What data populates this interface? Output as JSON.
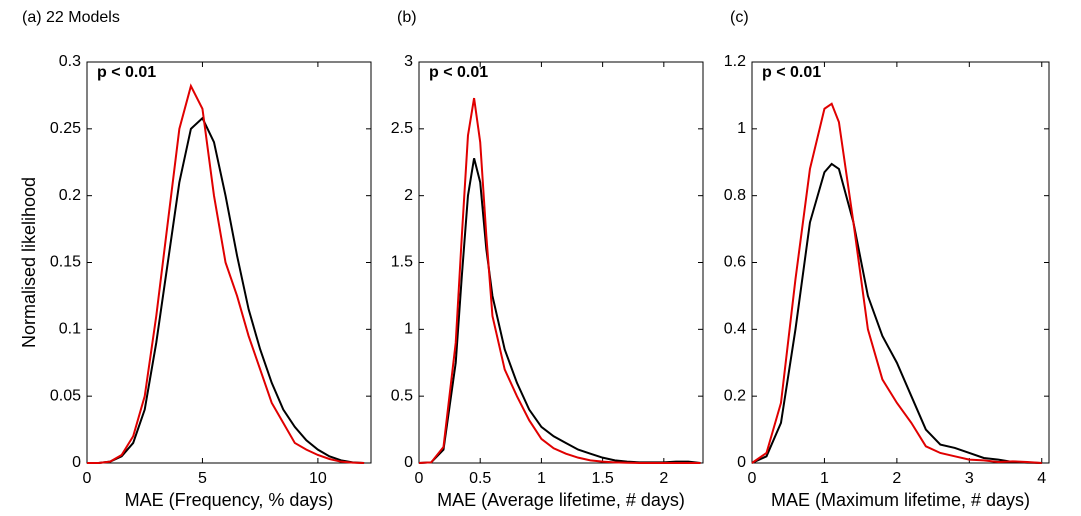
{
  "chart_data": [
    {
      "type": "line",
      "title": "(a) 22 Models",
      "annotation": "p < 0.01",
      "x_label": "MAE (Frequency, % days)",
      "y_label": "Normalised likelihood",
      "xlim": [
        0,
        12.3
      ],
      "ylim": [
        0,
        0.3
      ],
      "xticks": [
        0,
        5,
        10
      ],
      "yticks": [
        0,
        0.05,
        0.1,
        0.15,
        0.2,
        0.25,
        0.3
      ],
      "x": [
        0,
        0.5,
        1,
        1.5,
        2,
        2.5,
        3,
        3.5,
        4,
        4.5,
        5,
        5.5,
        6,
        6.5,
        7,
        7.5,
        8,
        8.5,
        9,
        9.5,
        10,
        10.5,
        11,
        11.5,
        12
      ],
      "series": [
        {
          "color": "#000000",
          "values": [
            0,
            0,
            0.001,
            0.005,
            0.015,
            0.04,
            0.09,
            0.15,
            0.21,
            0.25,
            0.258,
            0.24,
            0.2,
            0.155,
            0.115,
            0.085,
            0.06,
            0.04,
            0.027,
            0.017,
            0.01,
            0.005,
            0.002,
            0.0005,
            0
          ]
        },
        {
          "color": "#e00000",
          "values": [
            0,
            0,
            0.001,
            0.006,
            0.02,
            0.05,
            0.11,
            0.18,
            0.25,
            0.282,
            0.265,
            0.2,
            0.15,
            0.125,
            0.095,
            0.07,
            0.045,
            0.03,
            0.015,
            0.01,
            0.006,
            0.003,
            0.001,
            0.0003,
            0
          ]
        }
      ]
    },
    {
      "type": "line",
      "title": "(b)",
      "annotation": "p < 0.01",
      "x_label": "MAE (Average lifetime, # days)",
      "xlim": [
        0,
        2.32
      ],
      "ylim": [
        0,
        3
      ],
      "xticks": [
        0,
        0.5,
        1,
        1.5,
        2
      ],
      "yticks": [
        0,
        0.5,
        1,
        1.5,
        2,
        2.5,
        3
      ],
      "x": [
        0,
        0.1,
        0.2,
        0.3,
        0.35,
        0.4,
        0.45,
        0.5,
        0.55,
        0.6,
        0.7,
        0.8,
        0.9,
        1.0,
        1.1,
        1.2,
        1.3,
        1.4,
        1.5,
        1.6,
        1.7,
        1.8,
        1.9,
        2.0,
        2.1,
        2.2,
        2.3
      ],
      "series": [
        {
          "color": "#000000",
          "values": [
            0,
            0.005,
            0.1,
            0.75,
            1.4,
            2.0,
            2.28,
            2.1,
            1.6,
            1.25,
            0.85,
            0.6,
            0.4,
            0.27,
            0.2,
            0.15,
            0.1,
            0.07,
            0.04,
            0.02,
            0.01,
            0.005,
            0.005,
            0.005,
            0.01,
            0.01,
            0
          ]
        },
        {
          "color": "#e00000",
          "values": [
            0,
            0.005,
            0.12,
            0.9,
            1.7,
            2.45,
            2.73,
            2.4,
            1.7,
            1.1,
            0.7,
            0.5,
            0.32,
            0.18,
            0.11,
            0.07,
            0.04,
            0.02,
            0.01,
            0.005,
            0.002,
            0,
            0,
            0,
            0,
            0,
            0
          ]
        }
      ]
    },
    {
      "type": "line",
      "title": "(c)",
      "annotation": "p < 0.01",
      "x_label": "MAE (Maximum lifetime, # days)",
      "xlim": [
        0,
        4.1
      ],
      "ylim": [
        0,
        1.2
      ],
      "xticks": [
        0,
        1,
        2,
        3,
        4
      ],
      "yticks": [
        0,
        0.2,
        0.4,
        0.6,
        0.8,
        1,
        1.2
      ],
      "x": [
        0,
        0.2,
        0.4,
        0.6,
        0.8,
        1.0,
        1.1,
        1.2,
        1.4,
        1.6,
        1.8,
        2.0,
        2.2,
        2.4,
        2.6,
        2.8,
        3.0,
        3.2,
        3.4,
        3.6,
        3.8,
        4.0
      ],
      "series": [
        {
          "color": "#000000",
          "values": [
            0,
            0.02,
            0.12,
            0.4,
            0.72,
            0.87,
            0.895,
            0.88,
            0.72,
            0.5,
            0.38,
            0.3,
            0.2,
            0.1,
            0.055,
            0.045,
            0.03,
            0.015,
            0.01,
            0.003,
            0.001,
            0
          ]
        },
        {
          "color": "#e00000",
          "values": [
            0,
            0.03,
            0.18,
            0.55,
            0.88,
            1.06,
            1.075,
            1.02,
            0.72,
            0.4,
            0.25,
            0.18,
            0.12,
            0.05,
            0.03,
            0.02,
            0.01,
            0.008,
            0.003,
            0.005,
            0.003,
            0
          ]
        }
      ]
    }
  ]
}
